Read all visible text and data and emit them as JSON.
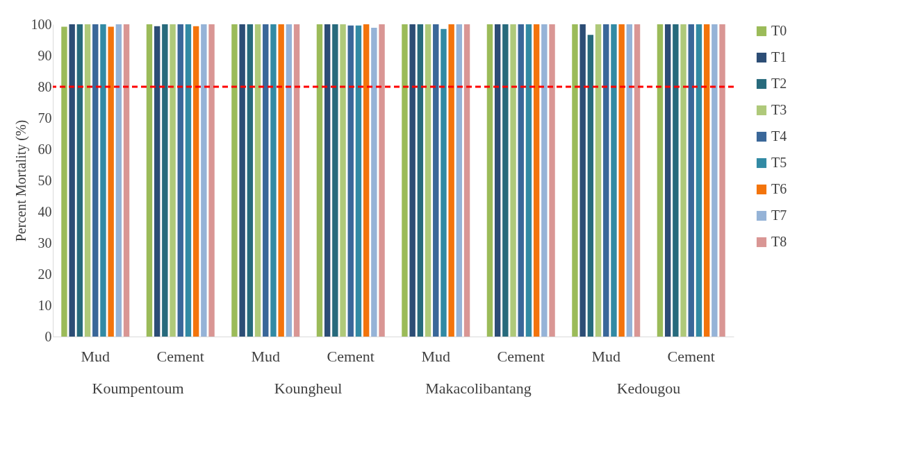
{
  "chart_data": {
    "type": "bar",
    "ylabel": "Percent Mortality (%)",
    "categories": [
      "Mud",
      "Cement",
      "Mud",
      "Cement",
      "Mud",
      "Cement",
      "Mud",
      "Cement"
    ],
    "annotations": [
      "Koumpentoum",
      "Koungheul",
      "Makacolibantang",
      "Kedougou"
    ],
    "series": [
      {
        "name": "T0",
        "color": "#9bbb59",
        "values": [
          99.2,
          100,
          100,
          100,
          100,
          100,
          100,
          100
        ]
      },
      {
        "name": "T1",
        "color": "#2c4d75",
        "values": [
          100,
          99.4,
          100,
          100,
          100,
          100,
          100,
          100
        ]
      },
      {
        "name": "T2",
        "color": "#276a7c",
        "values": [
          100,
          100,
          100,
          100,
          100,
          100,
          96.6,
          100
        ]
      },
      {
        "name": "T3",
        "color": "#afc97a",
        "values": [
          100,
          100,
          100,
          100,
          100,
          100,
          100,
          100
        ]
      },
      {
        "name": "T4",
        "color": "#3a6799",
        "values": [
          100,
          100,
          100,
          99.6,
          100,
          100,
          100,
          100
        ]
      },
      {
        "name": "T5",
        "color": "#328aa4",
        "values": [
          100,
          100,
          100,
          99.6,
          98.5,
          100,
          100,
          100
        ]
      },
      {
        "name": "T6",
        "color": "#f3740c",
        "values": [
          99.2,
          99.4,
          100,
          100,
          100,
          100,
          100,
          100
        ]
      },
      {
        "name": "T7",
        "color": "#95b3d7",
        "values": [
          100,
          100,
          100,
          98.9,
          100,
          100,
          100,
          100
        ]
      },
      {
        "name": "T8",
        "color": "#d99694",
        "values": [
          100,
          100,
          100,
          100,
          100,
          100,
          100,
          100
        ]
      }
    ],
    "ylim": [
      0,
      100
    ],
    "yticks": [
      0,
      10,
      20,
      30,
      40,
      50,
      60,
      70,
      80,
      90,
      100
    ],
    "ref_lines": [
      {
        "axis": "y",
        "value": 80,
        "color": "#ff0000",
        "line_style": "dashed"
      }
    ],
    "grid": false,
    "legend": "right"
  }
}
